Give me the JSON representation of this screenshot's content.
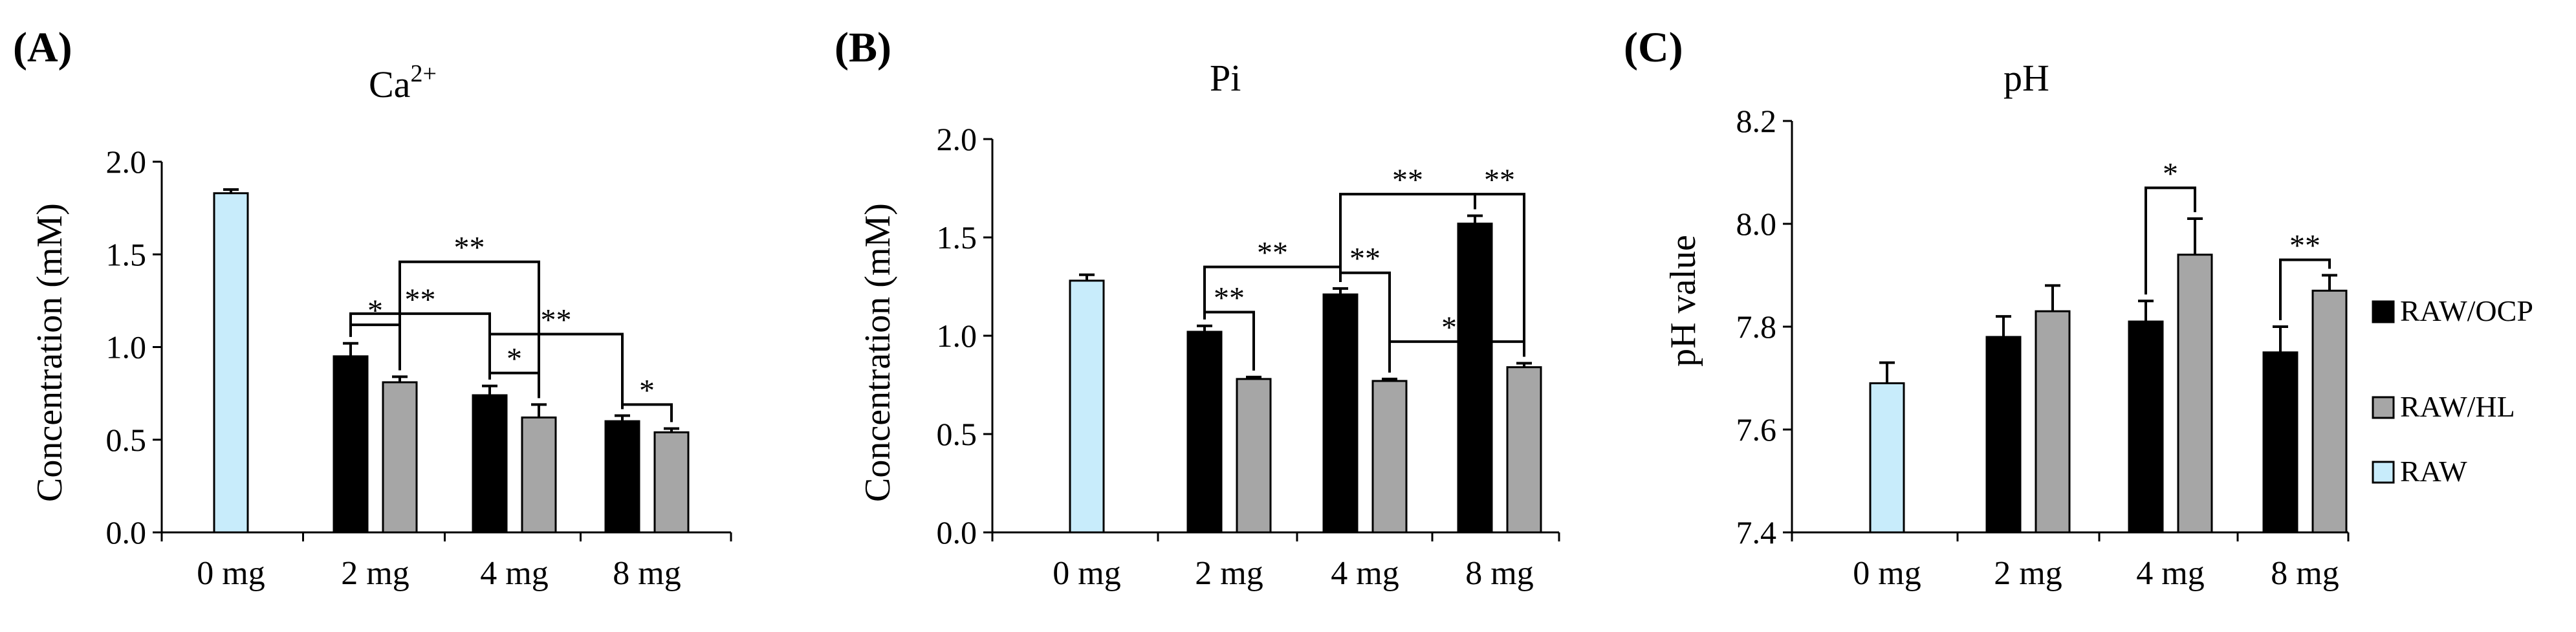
{
  "chart_data": [
    {
      "type": "bar",
      "panel_label": "(A)",
      "title": "Ca",
      "title_sup": "2+",
      "ylabel": "Concentration (mM)",
      "categories": [
        "0 mg",
        "2 mg",
        "4 mg",
        "8 mg"
      ],
      "ylim": [
        0,
        2.0
      ],
      "yticks": [
        "0.0",
        "0.5",
        "1.0",
        "1.5",
        "2.0"
      ],
      "series": [
        {
          "name": "RAW/OCP",
          "values": [
            null,
            0.95,
            0.74,
            0.6
          ],
          "errors": [
            null,
            0.07,
            0.05,
            0.03
          ]
        },
        {
          "name": "RAW/HL",
          "values": [
            null,
            0.81,
            0.62,
            0.54
          ],
          "errors": [
            null,
            0.03,
            0.07,
            0.02
          ]
        },
        {
          "name": "RAW",
          "values": [
            1.83,
            null,
            null,
            null
          ],
          "errors": [
            0.02,
            null,
            null,
            null
          ]
        }
      ],
      "annotations": [
        {
          "from": [
            1,
            0
          ],
          "to": [
            1,
            1
          ],
          "label": "*",
          "level": 1.12
        },
        {
          "from": [
            1,
            0
          ],
          "to": [
            2,
            0
          ],
          "label": "**",
          "level": 1.18
        },
        {
          "from": [
            1,
            1
          ],
          "to": [
            2,
            1
          ],
          "label": "**",
          "level": 1.46
        },
        {
          "from": [
            2,
            0
          ],
          "to": [
            2,
            1
          ],
          "label": "*",
          "level": 0.86
        },
        {
          "from": [
            2,
            0
          ],
          "to": [
            3,
            0
          ],
          "label": "**",
          "level": 1.07
        },
        {
          "from": [
            3,
            0
          ],
          "to": [
            3,
            1
          ],
          "label": "*",
          "level": 0.69
        }
      ]
    },
    {
      "type": "bar",
      "panel_label": "(B)",
      "title": "Pi",
      "title_sup": "",
      "ylabel": "Concentration (mM)",
      "categories": [
        "0 mg",
        "2 mg",
        "4 mg",
        "8 mg"
      ],
      "ylim": [
        0,
        2.0
      ],
      "yticks": [
        "0.0",
        "0.5",
        "1.0",
        "1.5",
        "2.0"
      ],
      "series": [
        {
          "name": "RAW/OCP",
          "values": [
            null,
            1.02,
            1.21,
            1.57
          ],
          "errors": [
            null,
            0.03,
            0.03,
            0.04
          ]
        },
        {
          "name": "RAW/HL",
          "values": [
            null,
            0.78,
            0.77,
            0.84
          ],
          "errors": [
            null,
            0.01,
            0.01,
            0.02
          ]
        },
        {
          "name": "RAW",
          "values": [
            1.28,
            null,
            null,
            null
          ],
          "errors": [
            0.03,
            null,
            null,
            null
          ]
        }
      ],
      "annotations": [
        {
          "from": [
            1,
            0
          ],
          "to": [
            1,
            1
          ],
          "label": "**",
          "level": 1.12
        },
        {
          "from": [
            1,
            0
          ],
          "to": [
            2,
            0
          ],
          "label": "**",
          "level": 1.35
        },
        {
          "from": [
            2,
            0
          ],
          "to": [
            2,
            1
          ],
          "label": "**",
          "level": 1.32
        },
        {
          "from": [
            2,
            0
          ],
          "to": [
            3,
            0
          ],
          "label": "**",
          "level": 1.72
        },
        {
          "from": [
            3,
            0
          ],
          "to": [
            3,
            1
          ],
          "label": "**",
          "level": 1.72
        },
        {
          "from": [
            2,
            1
          ],
          "to": [
            3,
            1
          ],
          "label": "**",
          "level": 0.97
        }
      ]
    },
    {
      "type": "bar",
      "panel_label": "(C)",
      "title": "pH",
      "title_sup": "",
      "ylabel": "pH value",
      "categories": [
        "0 mg",
        "2 mg",
        "4 mg",
        "8 mg"
      ],
      "ylim": [
        7.4,
        8.2
      ],
      "yticks": [
        "7.4",
        "7.6",
        "7.8",
        "8.0",
        "8.2"
      ],
      "series": [
        {
          "name": "RAW/OCP",
          "values": [
            null,
            7.78,
            7.81,
            7.75
          ],
          "errors": [
            null,
            0.04,
            0.04,
            0.05
          ]
        },
        {
          "name": "RAW/HL",
          "values": [
            null,
            7.83,
            7.94,
            7.87
          ],
          "errors": [
            null,
            0.05,
            0.07,
            0.03
          ]
        },
        {
          "name": "RAW",
          "values": [
            7.69,
            null,
            null,
            null
          ],
          "errors": [
            0.04,
            null,
            null,
            null
          ]
        }
      ],
      "annotations": [
        {
          "from": [
            2,
            0
          ],
          "to": [
            2,
            1
          ],
          "label": "*",
          "level": 8.07
        },
        {
          "from": [
            3,
            0
          ],
          "to": [
            3,
            1
          ],
          "label": "**",
          "level": 7.93
        }
      ]
    }
  ],
  "legend": {
    "placement": "right",
    "entries": [
      {
        "name": "RAW/OCP",
        "color": "#000000"
      },
      {
        "name": "RAW/HL",
        "color": "#a6a6a6"
      },
      {
        "name": "RAW",
        "color": "#c8ecfb"
      }
    ]
  },
  "colors": {
    "RAW/OCP": "#000000",
    "RAW/HL": "#a6a6a6",
    "RAW": "#c8ecfb"
  }
}
